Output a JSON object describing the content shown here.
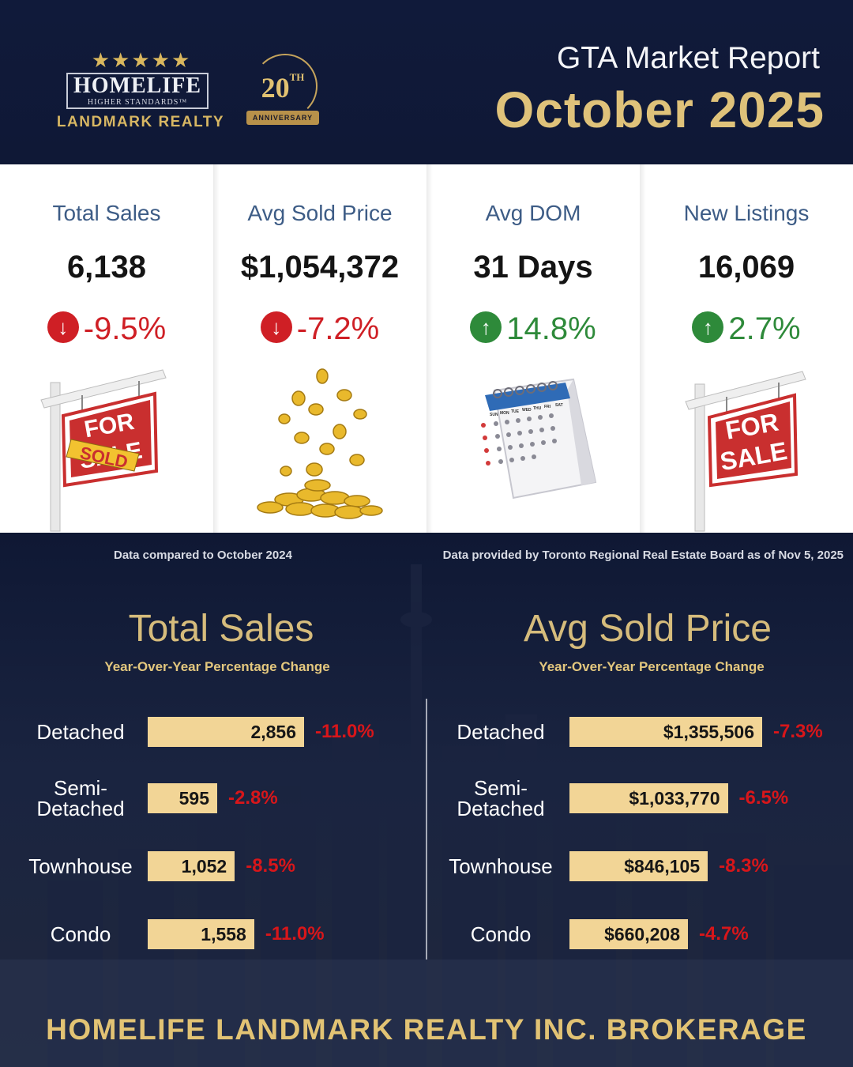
{
  "brand": {
    "stars": "★★★★★",
    "logo_main": "HOMELIFE",
    "logo_sub": "HIGHER STANDARDS™",
    "logo_realty": "LANDMARK REALTY",
    "anniversary_number": "20",
    "anniversary_suffix": "TH",
    "anniversary_label": "ANNIVERSARY"
  },
  "header": {
    "title": "GTA Market Report",
    "month": "October 2025"
  },
  "stats": [
    {
      "label": "Total Sales",
      "value": "6,138",
      "change": "-9.5%",
      "direction": "down"
    },
    {
      "label": "Avg Sold Price",
      "value": "$1,054,372",
      "change": "-7.2%",
      "direction": "down"
    },
    {
      "label": "Avg DOM",
      "value": "31 Days",
      "change": "14.8%",
      "direction": "up"
    },
    {
      "label": "New Listings",
      "value": "16,069",
      "change": "2.7%",
      "direction": "up"
    }
  ],
  "illustrations": {
    "sold_sign_top": "FOR",
    "sold_sign_bottom": "SALE",
    "sold_banner": "SOLD",
    "sale_sign_top": "FOR",
    "sale_sign_bottom": "SALE",
    "calendar_days": [
      "SUN",
      "MON",
      "TUE",
      "WED",
      "THU",
      "FRI",
      "SAT"
    ]
  },
  "notes": {
    "left": "Data compared to October 2024",
    "right": "Data provided by Toronto Regional Real Estate Board as of  Nov  5, 2025"
  },
  "chart_data": [
    {
      "type": "bar",
      "title": "Total Sales",
      "subtitle": "Year-Over-Year Percentage Change",
      "categories": [
        "Detached",
        "Semi-Detached",
        "Townhouse",
        "Condo"
      ],
      "values": [
        2856,
        595,
        1052,
        1558
      ],
      "value_labels": [
        "2,856",
        "595",
        "1,052",
        "1,558"
      ],
      "changes": [
        "-11.0%",
        "-2.8%",
        "-8.5%",
        "-11.0%"
      ],
      "category_lines": [
        [
          "Detached"
        ],
        [
          "Semi-",
          "Detached"
        ],
        [
          "Townhouse"
        ],
        [
          "Condo"
        ]
      ],
      "xlim": [
        0,
        2856
      ],
      "bar_color": "#f2d596",
      "change_color": "#d8161a"
    },
    {
      "type": "bar",
      "title": "Avg Sold Price",
      "subtitle": "Year-Over-Year Percentage Change",
      "categories": [
        "Detached",
        "Semi-Detached",
        "Townhouse",
        "Condo"
      ],
      "values": [
        1355506,
        1033770,
        846105,
        660208
      ],
      "value_labels": [
        "$1,355,506",
        "$1,033,770",
        "$846,105",
        "$660,208"
      ],
      "changes": [
        "-7.3%",
        "-6.5%",
        "-8.3%",
        "-4.7%"
      ],
      "category_lines": [
        [
          "Detached"
        ],
        [
          "Semi-",
          "Detached"
        ],
        [
          "Townhouse"
        ],
        [
          "Condo"
        ]
      ],
      "xlim": [
        0,
        1355506
      ],
      "bar_color": "#f2d596",
      "change_color": "#d8161a"
    }
  ],
  "footer": {
    "brokerage": "HOMELIFE LANDMARK REALTY INC. BROKERAGE"
  }
}
